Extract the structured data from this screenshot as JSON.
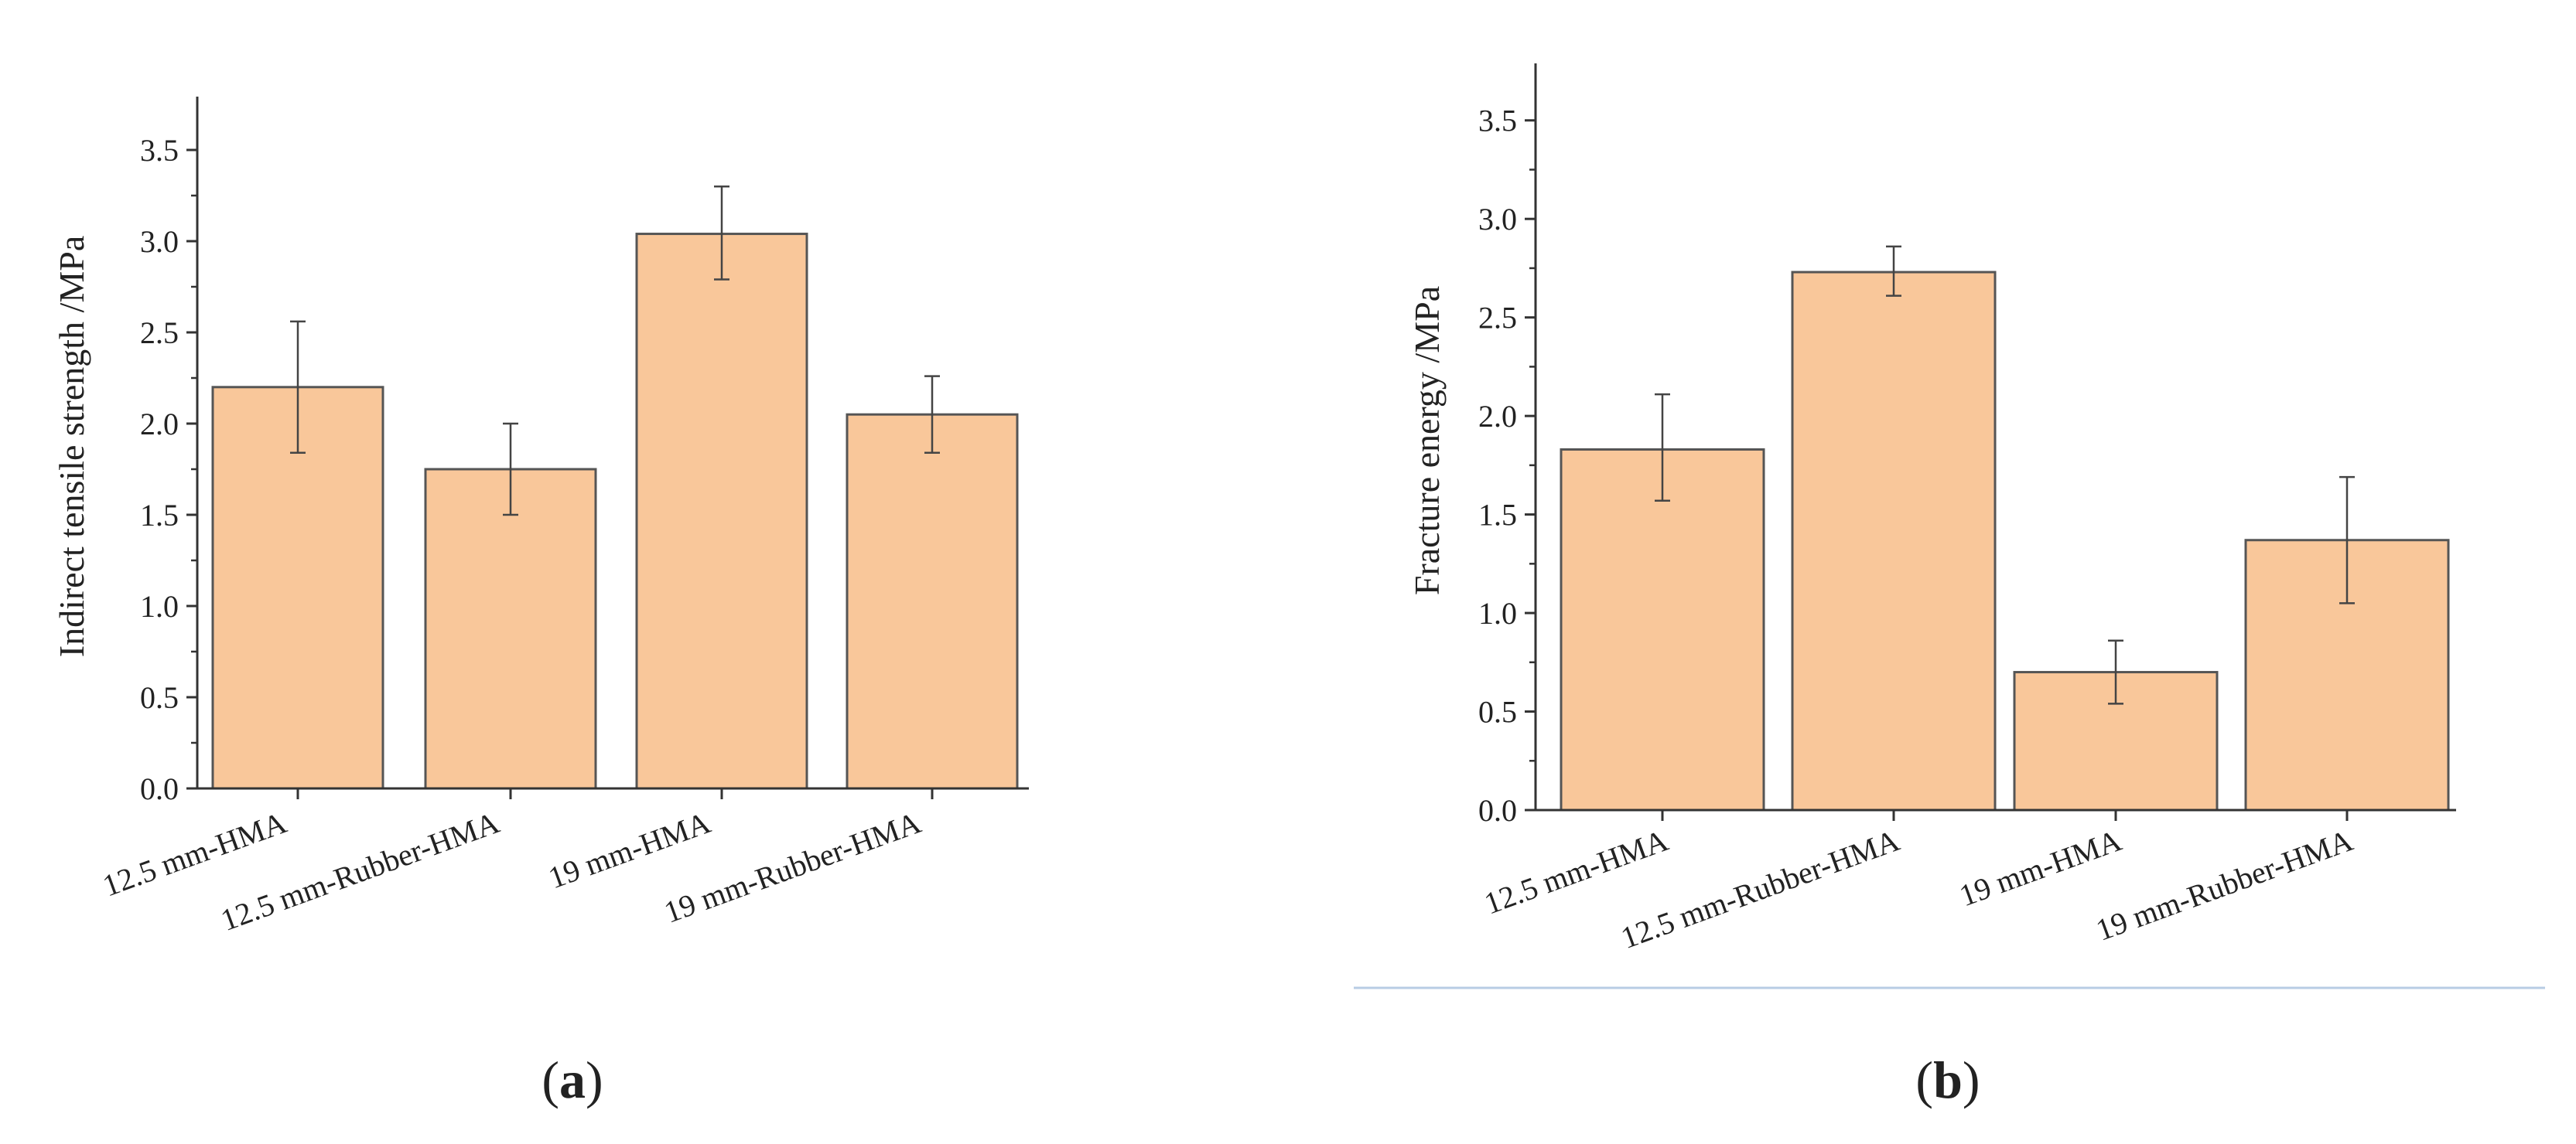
{
  "chart_data": [
    {
      "panel": "a",
      "type": "bar",
      "categories": [
        "12.5 mm-HMA",
        "12.5 mm-Rubber-HMA",
        "19 mm-HMA",
        "19 mm-Rubber-HMA"
      ],
      "values": [
        2.2,
        1.75,
        3.04,
        2.05
      ],
      "errors_low": [
        1.84,
        1.5,
        2.79,
        1.84
      ],
      "errors_high": [
        2.56,
        2.0,
        3.3,
        2.26
      ],
      "title": "",
      "xlabel": "",
      "ylabel": "Indirect tensile strength /MPa",
      "ylim": [
        0,
        3.75
      ],
      "yticks": [
        "0.0",
        "0.5",
        "1.0",
        "1.5",
        "2.0",
        "2.5",
        "3.0",
        "3.5"
      ],
      "grid": false,
      "bar_color": "#F9C79A",
      "bar_edge_color": "#555555"
    },
    {
      "panel": "b",
      "type": "bar",
      "categories": [
        "12.5 mm-HMA",
        "12.5 mm-Rubber-HMA",
        "19 mm-HMA",
        "19 mm-Rubber-HMA"
      ],
      "values": [
        1.83,
        2.73,
        0.7,
        1.37
      ],
      "errors_low": [
        1.57,
        2.61,
        0.54,
        1.05
      ],
      "errors_high": [
        2.11,
        2.86,
        0.86,
        1.69
      ],
      "title": "",
      "xlabel": "",
      "ylabel": "Fracture energy /MPa",
      "ylim": [
        0,
        3.75
      ],
      "yticks": [
        "0.0",
        "0.5",
        "1.0",
        "1.5",
        "2.0",
        "2.5",
        "3.0",
        "3.5"
      ],
      "grid": false,
      "bar_color": "#F9C79A",
      "bar_edge_color": "#555555"
    }
  ],
  "captions": {
    "a": {
      "open": "(",
      "letter": "a",
      "close": ")"
    },
    "b": {
      "open": "(",
      "letter": "b",
      "close": ")"
    }
  },
  "colors": {
    "divider": "#B8CCE4",
    "axis": "#333333",
    "error_bar": "#444444"
  }
}
